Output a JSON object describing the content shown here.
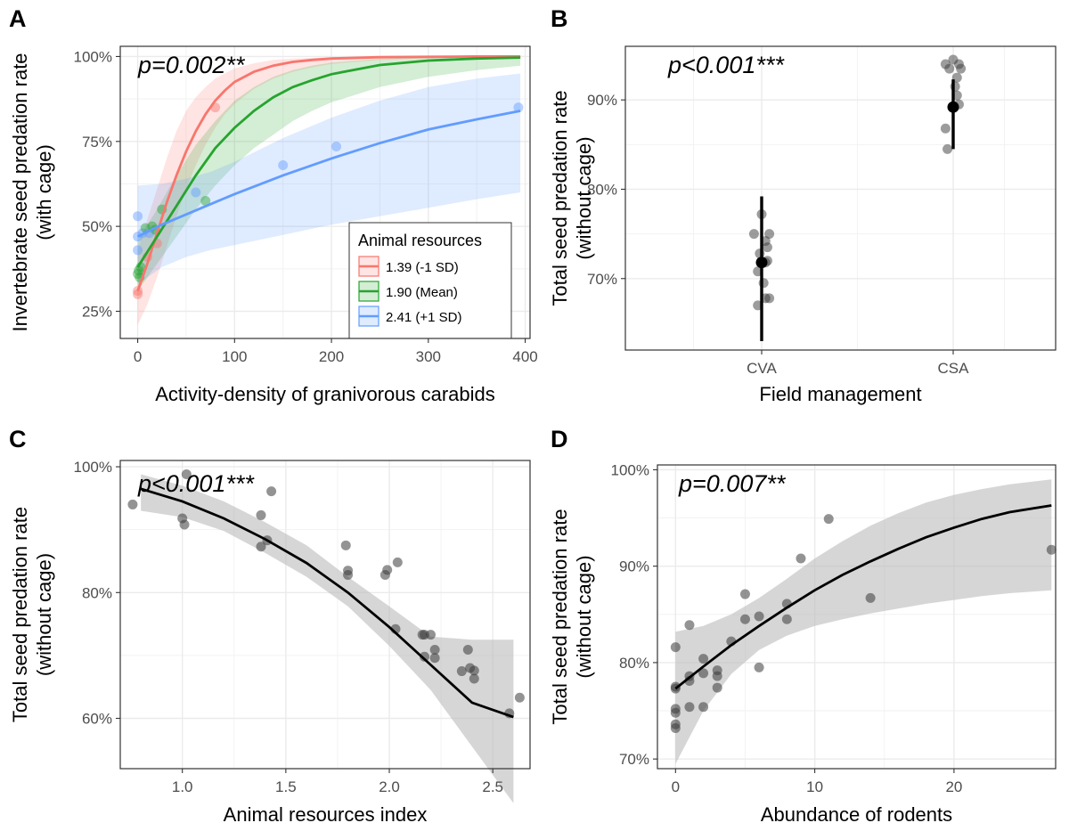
{
  "figure": {
    "colors": {
      "low": "#F8766D",
      "mean": "#26A42E",
      "high": "#619CFF",
      "points": "#3a3a3a",
      "band": "#BDBDBD"
    }
  },
  "chart_data": [
    {
      "panel": "A",
      "type": "line",
      "annotation": "p=0.002**",
      "xlabel": "Activity-density of granivorous carabids",
      "ylabel_lines": [
        "Invertebrate seed predation rate",
        "(with cage)"
      ],
      "xlim": [
        -18,
        405
      ],
      "ylim": [
        17,
        103
      ],
      "xticks": [
        0,
        100,
        200,
        300,
        400
      ],
      "xtick_labels": [
        "0",
        "100",
        "200",
        "300",
        "400"
      ],
      "yticks": [
        25,
        50,
        75,
        100
      ],
      "ytick_labels": [
        "25%",
        "50%",
        "75%",
        "100%"
      ],
      "grid": true,
      "legend": {
        "title": "Animal resources",
        "position": "inside-bottom-right",
        "entries": [
          "1.39 (-1 SD)",
          "1.90 (Mean)",
          "2.41 (+1 SD)"
        ]
      },
      "series": [
        {
          "name": "1.39 (-1 SD)",
          "color": "#F8766D",
          "x": [
            0,
            10,
            20,
            30,
            40,
            50,
            60,
            70,
            80,
            90,
            100,
            120,
            140,
            160,
            180,
            200,
            250,
            300,
            350,
            395
          ],
          "values": [
            31,
            39,
            48,
            57,
            65,
            72,
            78,
            83,
            87,
            90,
            92.5,
            95.5,
            97.3,
            98.4,
            99.0,
            99.4,
            99.8,
            99.9,
            100,
            100
          ],
          "lower": [
            21,
            27,
            35,
            44,
            53,
            61,
            68,
            74,
            79,
            83,
            86,
            90.5,
            93.5,
            95.5,
            96.8,
            97.8,
            99.0,
            99.5,
            99.7,
            99.8
          ],
          "upper": [
            43,
            52,
            61,
            70,
            78,
            84,
            88,
            91,
            93.5,
            95,
            96.5,
            98,
            99,
            99.4,
            99.6,
            99.8,
            99.9,
            100,
            100,
            100
          ]
        },
        {
          "name": "1.90 (Mean)",
          "color": "#26A42E",
          "x": [
            0,
            20,
            40,
            60,
            80,
            100,
            120,
            140,
            160,
            180,
            200,
            250,
            300,
            350,
            395
          ],
          "values": [
            38,
            47,
            56,
            65,
            73,
            79,
            84,
            88,
            91,
            93,
            94.8,
            97.5,
            98.8,
            99.4,
            99.7
          ],
          "lower": [
            31,
            39,
            47,
            55,
            62,
            68,
            73,
            77,
            81,
            84,
            86.5,
            91,
            94,
            96,
            97.3
          ],
          "upper": [
            46,
            55,
            65,
            74,
            81,
            87,
            91,
            94,
            96,
            97.3,
            98.2,
            99.3,
            99.7,
            99.9,
            100
          ]
        },
        {
          "name": "2.41 (+1 SD)",
          "color": "#619CFF",
          "x": [
            0,
            25,
            50,
            75,
            100,
            150,
            200,
            250,
            300,
            350,
            395
          ],
          "values": [
            47,
            50.5,
            53.5,
            56.5,
            59.5,
            65,
            70,
            74.5,
            78.5,
            81.5,
            84
          ],
          "lower": [
            33,
            38,
            41,
            43,
            44.5,
            47.5,
            50.5,
            53,
            55.5,
            58,
            60
          ],
          "upper": [
            62,
            62.5,
            64,
            66,
            69,
            76,
            82,
            87,
            91,
            93.5,
            95
          ]
        }
      ],
      "points": [
        {
          "x": 0,
          "y": 30,
          "g": "low"
        },
        {
          "x": 0,
          "y": 31,
          "g": "low"
        },
        {
          "x": 2,
          "y": 35,
          "g": "mean"
        },
        {
          "x": 0,
          "y": 36,
          "g": "mean"
        },
        {
          "x": 1,
          "y": 37,
          "g": "mean"
        },
        {
          "x": 3,
          "y": 38,
          "g": "mean"
        },
        {
          "x": 0,
          "y": 43,
          "g": "high"
        },
        {
          "x": 0,
          "y": 47,
          "g": "high"
        },
        {
          "x": 0,
          "y": 53,
          "g": "high"
        },
        {
          "x": 5,
          "y": 48,
          "g": "high"
        },
        {
          "x": 8,
          "y": 49.5,
          "g": "mean"
        },
        {
          "x": 12,
          "y": 48,
          "g": "high"
        },
        {
          "x": 15,
          "y": 50,
          "g": "mean"
        },
        {
          "x": 18,
          "y": 49,
          "g": "mean"
        },
        {
          "x": 10,
          "y": 41,
          "g": "low"
        },
        {
          "x": 20,
          "y": 45,
          "g": "low"
        },
        {
          "x": 25,
          "y": 55,
          "g": "mean"
        },
        {
          "x": 60,
          "y": 60,
          "g": "high"
        },
        {
          "x": 70,
          "y": 57.5,
          "g": "mean"
        },
        {
          "x": 80,
          "y": 85,
          "g": "low"
        },
        {
          "x": 150,
          "y": 68,
          "g": "high"
        },
        {
          "x": 205,
          "y": 73.5,
          "g": "high"
        },
        {
          "x": 393,
          "y": 85,
          "g": "high"
        }
      ]
    },
    {
      "panel": "B",
      "type": "scatter",
      "annotation": "p<0.001***",
      "xlabel": "Field management",
      "ylabel_lines": [
        "Total seed predation rate",
        "(without cage)"
      ],
      "categories": [
        "CVA",
        "CSA"
      ],
      "ylim": [
        62,
        96
      ],
      "yticks": [
        70,
        80,
        90
      ],
      "ytick_labels": [
        "70%",
        "80%",
        "90%"
      ],
      "grid": true,
      "means": [
        {
          "category": "CVA",
          "mean": 71.8,
          "lower": 63.0,
          "upper": 79.2
        },
        {
          "category": "CSA",
          "mean": 89.2,
          "lower": 84.5,
          "upper": 92.3
        }
      ],
      "points": [
        {
          "c": 0,
          "dx": -0.04,
          "y": 75.0
        },
        {
          "c": 0,
          "dx": 0.0,
          "y": 77.2
        },
        {
          "c": 0,
          "dx": 0.04,
          "y": 75.0
        },
        {
          "c": 0,
          "dx": 0.02,
          "y": 74.2
        },
        {
          "c": 0,
          "dx": 0.03,
          "y": 73.5
        },
        {
          "c": 0,
          "dx": -0.01,
          "y": 72.8
        },
        {
          "c": 0,
          "dx": 0.02,
          "y": 71.8
        },
        {
          "c": 0,
          "dx": 0.03,
          "y": 72.0
        },
        {
          "c": 0,
          "dx": -0.02,
          "y": 70.8
        },
        {
          "c": 0,
          "dx": 0.01,
          "y": 69.5
        },
        {
          "c": 0,
          "dx": 0.02,
          "y": 67.8
        },
        {
          "c": 0,
          "dx": 0.04,
          "y": 67.8
        },
        {
          "c": 0,
          "dx": -0.02,
          "y": 67.0
        },
        {
          "c": 1,
          "dx": -0.04,
          "y": 94.0
        },
        {
          "c": 1,
          "dx": 0.0,
          "y": 94.5
        },
        {
          "c": 1,
          "dx": 0.03,
          "y": 94.0
        },
        {
          "c": 1,
          "dx": -0.02,
          "y": 93.5
        },
        {
          "c": 1,
          "dx": 0.04,
          "y": 93.5
        },
        {
          "c": 1,
          "dx": 0.02,
          "y": 92.5
        },
        {
          "c": 1,
          "dx": 0.01,
          "y": 91.5
        },
        {
          "c": 1,
          "dx": 0.02,
          "y": 90.5
        },
        {
          "c": 1,
          "dx": 0.03,
          "y": 89.5
        },
        {
          "c": 1,
          "dx": -0.04,
          "y": 86.8
        },
        {
          "c": 1,
          "dx": -0.03,
          "y": 84.5
        }
      ]
    },
    {
      "panel": "C",
      "type": "line",
      "annotation": "p<0.001***",
      "xlabel": "Animal resources index",
      "ylabel_lines": [
        "Total seed predation rate",
        "(without cage)"
      ],
      "xlim": [
        0.7,
        2.68
      ],
      "ylim": [
        52,
        101
      ],
      "xticks": [
        1.0,
        1.5,
        2.0,
        2.5
      ],
      "xtick_labels": [
        "1.0",
        "1.5",
        "2.0",
        "2.5"
      ],
      "yticks": [
        60,
        80,
        100
      ],
      "ytick_labels": [
        "60%",
        "80%",
        "100%"
      ],
      "grid": true,
      "series": [
        {
          "name": "",
          "color": "#000000",
          "x": [
            0.8,
            1.0,
            1.2,
            1.4,
            1.6,
            1.8,
            2.0,
            2.2,
            2.4,
            2.6
          ],
          "values": [
            96.5,
            94.5,
            91.8,
            88.5,
            84.7,
            80.0,
            74.5,
            68.5,
            62.5,
            60.2
          ],
          "lower": [
            93.0,
            92.0,
            89.8,
            86.3,
            82.5,
            77.8,
            71.5,
            64.5,
            55.5,
            46.5
          ],
          "upper": [
            98.8,
            97.0,
            94.5,
            91.2,
            87.5,
            82.5,
            77.8,
            73.0,
            72.5,
            72.5
          ]
        }
      ],
      "points": [
        {
          "x": 0.76,
          "y": 94.0
        },
        {
          "x": 1.0,
          "y": 91.8
        },
        {
          "x": 1.01,
          "y": 90.8
        },
        {
          "x": 1.02,
          "y": 98.8
        },
        {
          "x": 1.38,
          "y": 92.3
        },
        {
          "x": 1.38,
          "y": 87.3
        },
        {
          "x": 1.41,
          "y": 88.3
        },
        {
          "x": 1.43,
          "y": 96.1
        },
        {
          "x": 1.79,
          "y": 87.5
        },
        {
          "x": 1.8,
          "y": 82.8
        },
        {
          "x": 1.8,
          "y": 83.5
        },
        {
          "x": 1.98,
          "y": 82.8
        },
        {
          "x": 1.99,
          "y": 83.6
        },
        {
          "x": 2.03,
          "y": 74.2
        },
        {
          "x": 2.04,
          "y": 84.8
        },
        {
          "x": 2.16,
          "y": 73.3
        },
        {
          "x": 2.17,
          "y": 73.3
        },
        {
          "x": 2.17,
          "y": 69.8
        },
        {
          "x": 2.2,
          "y": 73.3
        },
        {
          "x": 2.22,
          "y": 69.6
        },
        {
          "x": 2.22,
          "y": 70.9
        },
        {
          "x": 2.35,
          "y": 67.5
        },
        {
          "x": 2.38,
          "y": 70.9
        },
        {
          "x": 2.39,
          "y": 68.0
        },
        {
          "x": 2.41,
          "y": 66.3
        },
        {
          "x": 2.41,
          "y": 67.6
        },
        {
          "x": 2.58,
          "y": 60.8
        },
        {
          "x": 2.63,
          "y": 63.3
        }
      ]
    },
    {
      "panel": "D",
      "type": "line",
      "annotation": "p=0.007**",
      "xlabel": "Abundance of rodents",
      "ylabel_lines": [
        "Total seed predation rate",
        "(without cage)"
      ],
      "xlim": [
        -1.3,
        27.3
      ],
      "ylim": [
        69,
        100.5
      ],
      "xticks": [
        0,
        10,
        20
      ],
      "xtick_labels": [
        "0",
        "10",
        "20"
      ],
      "yticks": [
        70,
        80,
        90,
        100
      ],
      "ytick_labels": [
        "70%",
        "80%",
        "90%",
        "100%"
      ],
      "grid": true,
      "series": [
        {
          "name": "",
          "color": "#000000",
          "x": [
            0,
            2,
            4,
            6,
            8,
            10,
            12,
            14,
            16,
            18,
            20,
            22,
            24,
            27
          ],
          "values": [
            77.3,
            79.6,
            81.8,
            83.8,
            85.7,
            87.5,
            89.1,
            90.5,
            91.8,
            93.0,
            94.0,
            94.9,
            95.6,
            96.3
          ],
          "lower": [
            69.5,
            75.0,
            78.8,
            81.3,
            82.8,
            83.8,
            84.5,
            85.1,
            85.6,
            86.1,
            86.5,
            86.9,
            87.2,
            87.5
          ],
          "upper": [
            83.2,
            83.8,
            85.0,
            86.7,
            88.7,
            90.8,
            92.6,
            94.2,
            95.5,
            96.6,
            97.4,
            98.0,
            98.5,
            99.0
          ]
        }
      ],
      "points": [
        {
          "x": 0,
          "y": 81.6
        },
        {
          "x": 0,
          "y": 77.5
        },
        {
          "x": 0,
          "y": 77.3
        },
        {
          "x": 0,
          "y": 75.2
        },
        {
          "x": 0,
          "y": 74.8
        },
        {
          "x": 0,
          "y": 73.6
        },
        {
          "x": 0,
          "y": 73.2
        },
        {
          "x": 1,
          "y": 83.9
        },
        {
          "x": 1,
          "y": 78.6
        },
        {
          "x": 1,
          "y": 78.1
        },
        {
          "x": 1,
          "y": 75.4
        },
        {
          "x": 2,
          "y": 80.4
        },
        {
          "x": 2,
          "y": 78.9
        },
        {
          "x": 2,
          "y": 75.4
        },
        {
          "x": 3,
          "y": 79.2
        },
        {
          "x": 3,
          "y": 78.6
        },
        {
          "x": 3,
          "y": 77.4
        },
        {
          "x": 4,
          "y": 82.2
        },
        {
          "x": 5,
          "y": 87.1
        },
        {
          "x": 5,
          "y": 84.5
        },
        {
          "x": 6,
          "y": 84.8
        },
        {
          "x": 6,
          "y": 79.5
        },
        {
          "x": 8,
          "y": 86.1
        },
        {
          "x": 8,
          "y": 84.5
        },
        {
          "x": 9,
          "y": 90.8
        },
        {
          "x": 11,
          "y": 94.9
        },
        {
          "x": 14,
          "y": 86.7
        },
        {
          "x": 27,
          "y": 91.7
        }
      ]
    }
  ]
}
